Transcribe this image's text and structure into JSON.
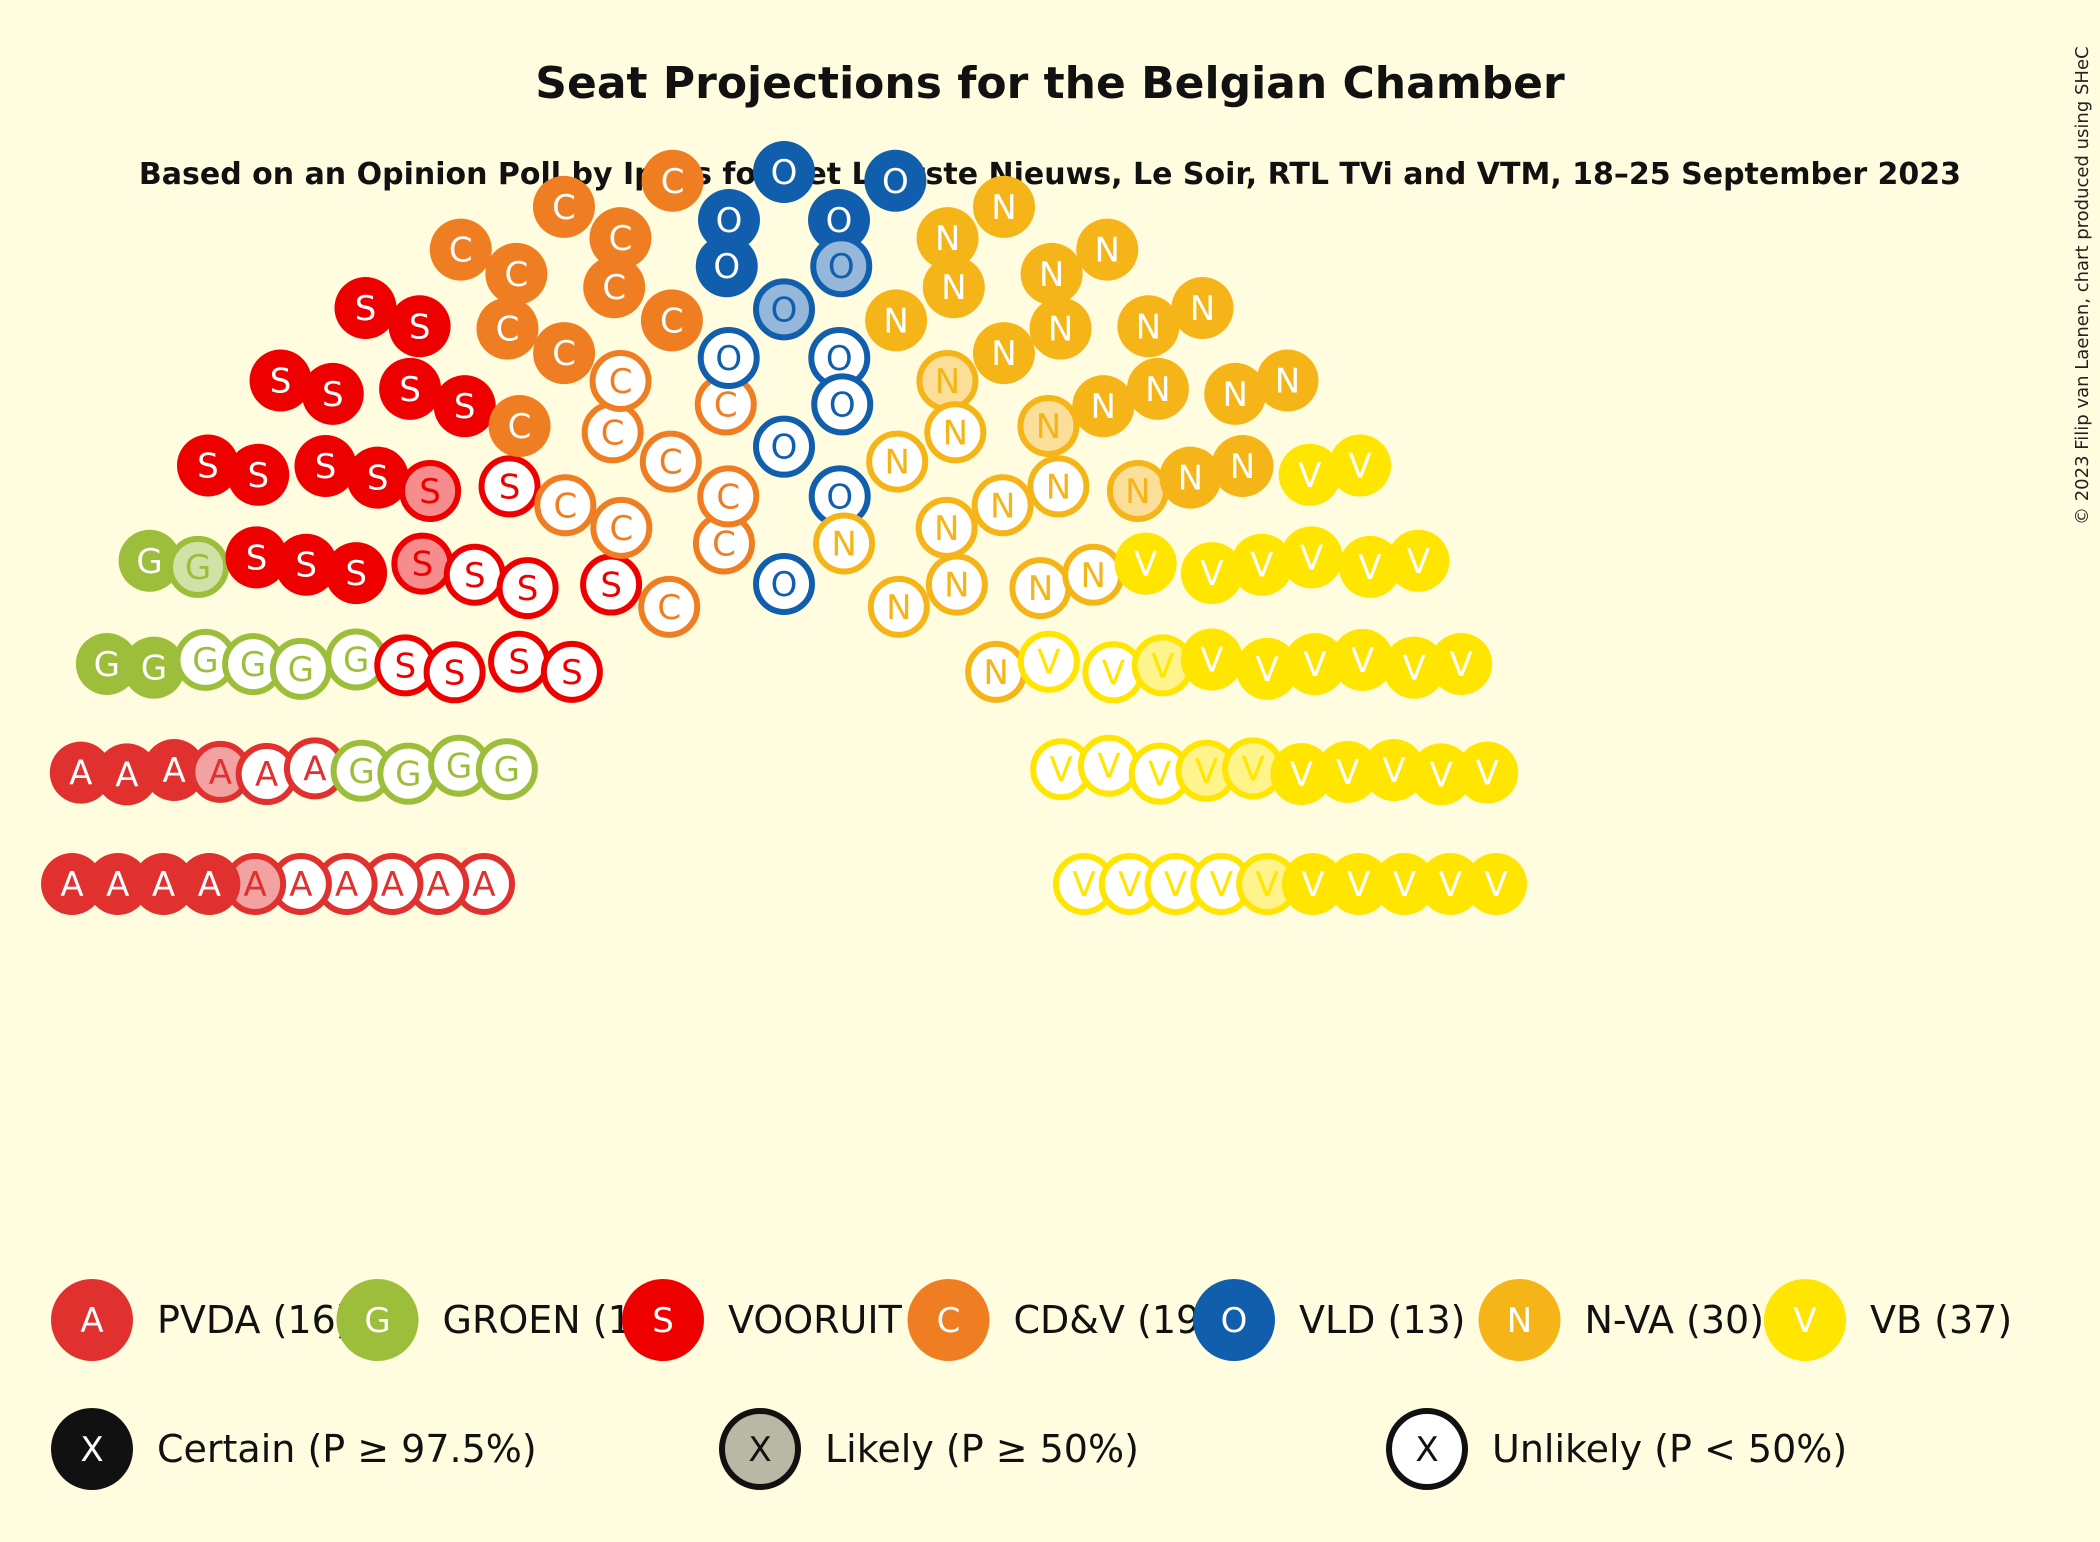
{
  "chart_data": {
    "type": "parliament",
    "title": "Seat Projections for the Belgian Chamber",
    "subtitle": "Based on an Opinion Poll by Ipsos for Het Laatste Nieuws, Le Soir, RTL TVi and VTM, 18–25 September 2023",
    "copyright": "© 2023 Filip van Laenen, chart produced using SHeC",
    "parties": [
      {
        "letter": "A",
        "label": "PVDA (16)",
        "seats": 16,
        "color": "#E0312F",
        "certain": 7,
        "likely": 2
      },
      {
        "letter": "G",
        "label": "GROEN (12)",
        "seats": 12,
        "color": "#9CBE3A",
        "certain": 3,
        "likely": 1
      },
      {
        "letter": "S",
        "label": "VOORUIT (23)",
        "seats": 23,
        "color": "#EE0000",
        "certain": 13,
        "likely": 2
      },
      {
        "letter": "C",
        "label": "CD&V (19)",
        "seats": 19,
        "color": "#EF7E22",
        "certain": 10,
        "likely": 0
      },
      {
        "letter": "O",
        "label": "VLD (13)",
        "seats": 13,
        "color": "#115EAC",
        "certain": 5,
        "likely": 2
      },
      {
        "letter": "N",
        "label": "N-VA (30)",
        "seats": 30,
        "color": "#F5B518",
        "certain": 16,
        "likely": 3
      },
      {
        "letter": "V",
        "label": "VB (37)",
        "seats": 37,
        "color": "#FFE500",
        "certain": 24,
        "likely": 4
      }
    ],
    "probability_legend": [
      {
        "letter": "X",
        "label": "Certain (P ≥ 97.5%)",
        "type": "certain"
      },
      {
        "letter": "X",
        "label": "Likely (P ≥ 50%)",
        "type": "likely"
      },
      {
        "letter": "X",
        "label": "Unlikely (P < 50%)",
        "type": "unlikely"
      }
    ]
  }
}
